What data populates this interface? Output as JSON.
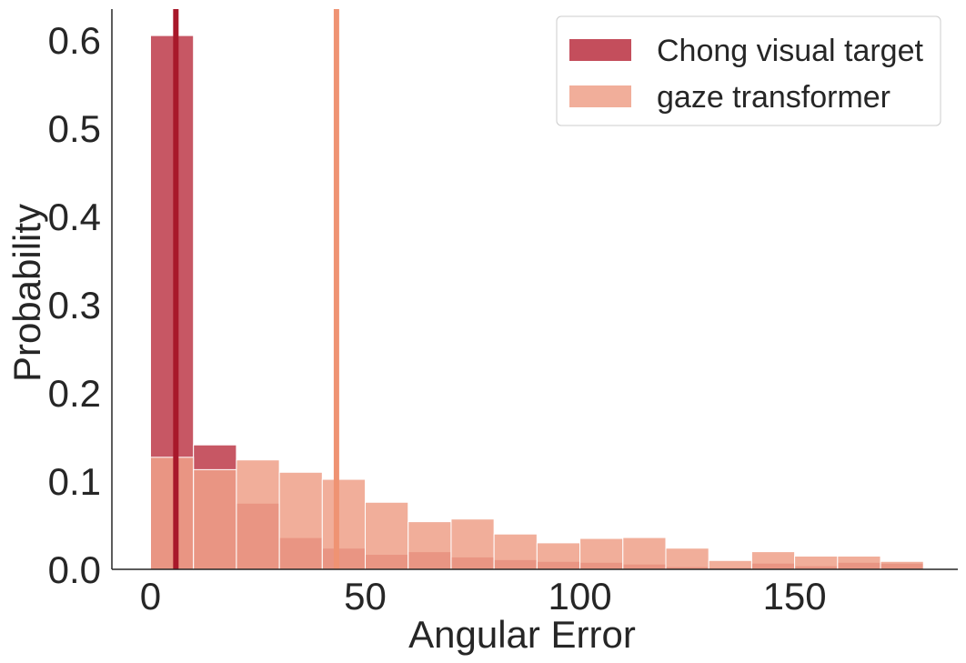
{
  "chart_data": {
    "type": "bar",
    "subtype": "overlaid-histogram",
    "xlabel": "Angular Error",
    "ylabel": "Probability",
    "xlim": [
      -9,
      188
    ],
    "ylim": [
      0,
      0.635
    ],
    "xticks": [
      0,
      50,
      100,
      150
    ],
    "yticks": [
      0.0,
      0.1,
      0.2,
      0.3,
      0.4,
      0.5,
      0.6
    ],
    "ytick_labels": [
      "0.0",
      "0.1",
      "0.2",
      "0.3",
      "0.4",
      "0.5",
      "0.6"
    ],
    "grid": false,
    "legend_position": "top-right",
    "bin_edges": [
      0,
      10,
      20,
      30,
      40,
      50,
      60,
      70,
      80,
      90,
      100,
      110,
      120,
      130,
      140,
      150,
      160,
      170,
      180
    ],
    "series": [
      {
        "name": "Chong visual target",
        "color": "#c44e5c",
        "values": [
          0.605,
          0.141,
          0.075,
          0.036,
          0.024,
          0.017,
          0.02,
          0.014,
          0.011,
          0.009,
          0.008,
          0.006,
          0.003,
          0.002,
          0.007,
          0.004,
          0.008,
          0.007
        ],
        "mean_line": 5.9,
        "mean_line_color": "#a8182a"
      },
      {
        "name": "gaze transformer",
        "color": "#eea088",
        "values": [
          0.127,
          0.113,
          0.124,
          0.11,
          0.102,
          0.076,
          0.054,
          0.057,
          0.04,
          0.03,
          0.035,
          0.036,
          0.024,
          0.01,
          0.02,
          0.015,
          0.015,
          0.009
        ],
        "mean_line": 43.3,
        "mean_line_color": "#ef9373"
      }
    ]
  }
}
